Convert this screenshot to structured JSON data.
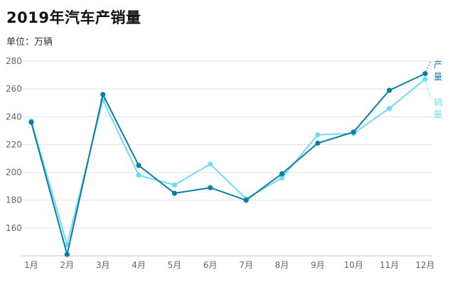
{
  "title": "2019年汽车产销量",
  "unit_label": "单位：万辆",
  "colors": {
    "production": "#0a7ea4",
    "sales": "#6fdcf7",
    "grid": "#e3e3e3",
    "axis": "#c4c4c4"
  },
  "chart_data": {
    "type": "line",
    "title": "2019年汽车产销量",
    "ylabel": "单位：万辆",
    "categories": [
      "1月",
      "2月",
      "3月",
      "4月",
      "5月",
      "6月",
      "7月",
      "8月",
      "9月",
      "10月",
      "11月",
      "12月"
    ],
    "ylim": [
      140,
      280
    ],
    "yticks": [
      160,
      180,
      200,
      220,
      240,
      260,
      280
    ],
    "grid": true,
    "legend": "end-of-line labels (right)",
    "series": [
      {
        "name": "产量",
        "label_chars": [
          "产",
          "量"
        ],
        "values": [
          236,
          141,
          256,
          205,
          185,
          189,
          180,
          199,
          221,
          229,
          259,
          271
        ]
      },
      {
        "name": "销量",
        "label_chars": [
          "销",
          "量"
        ],
        "values": [
          237,
          148,
          252,
          198,
          191,
          206,
          181,
          196,
          227,
          228,
          246,
          267
        ]
      }
    ]
  }
}
